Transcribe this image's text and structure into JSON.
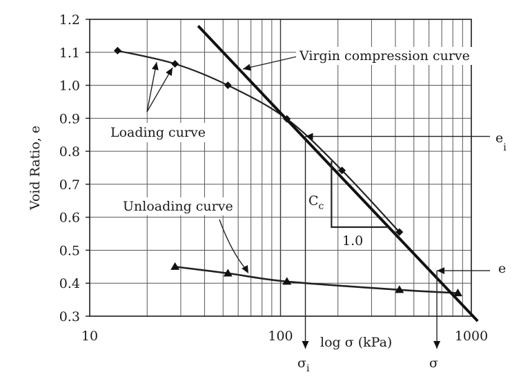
{
  "chart_data": {
    "type": "line",
    "title": "",
    "xlabel": "log σ (kPa)",
    "ylabel": "Void Ratio, e",
    "xscale": "log",
    "xlim": [
      10,
      1000
    ],
    "ylim": [
      0.3,
      1.2
    ],
    "grid": true,
    "x_ticks": [
      {
        "value": 10,
        "label": "10"
      },
      {
        "value": 100,
        "label": "100"
      },
      {
        "value": 1000,
        "label": "1000"
      }
    ],
    "y_ticks": [
      {
        "value": 0.3,
        "label": "0.3"
      },
      {
        "value": 0.4,
        "label": "0.4"
      },
      {
        "value": 0.5,
        "label": "0.5"
      },
      {
        "value": 0.6,
        "label": "0.6"
      },
      {
        "value": 0.7,
        "label": "0.7"
      },
      {
        "value": 0.8,
        "label": "0.8"
      },
      {
        "value": 0.9,
        "label": "0.9"
      },
      {
        "value": 1.0,
        "label": "1.0"
      },
      {
        "value": 1.1,
        "label": "1.1"
      },
      {
        "value": 1.2,
        "label": "1.2"
      }
    ],
    "series": [
      {
        "name": "Loading curve",
        "marker": "diamond",
        "points": [
          {
            "x": 14,
            "y": 1.105
          },
          {
            "x": 28,
            "y": 1.065
          },
          {
            "x": 53,
            "y": 1.0
          },
          {
            "x": 108,
            "y": 0.898
          },
          {
            "x": 210,
            "y": 0.742
          },
          {
            "x": 420,
            "y": 0.555
          }
        ]
      },
      {
        "name": "Unloading curve",
        "marker": "triangle",
        "points": [
          {
            "x": 28,
            "y": 0.45
          },
          {
            "x": 53,
            "y": 0.43
          },
          {
            "x": 108,
            "y": 0.405
          },
          {
            "x": 420,
            "y": 0.38
          },
          {
            "x": 850,
            "y": 0.37
          }
        ]
      },
      {
        "name": "Virgin compression curve",
        "marker": "none",
        "points": [
          {
            "x": 37,
            "y": 1.18
          },
          {
            "x": 1080,
            "y": 0.285
          }
        ]
      }
    ],
    "annotations": {
      "virgin_label": "Virgin compression curve",
      "loading_label": "Loading curve",
      "unloading_label": "Unloading curve",
      "ei_label": "e",
      "ei_sub": "i",
      "e_label": "e",
      "cc_label": "C",
      "cc_sub": "c",
      "slope_run_label": "1.0",
      "sigma_i_label": "σ",
      "sigma_i_sub": "i",
      "sigma_label": "σ"
    },
    "markers": {
      "ei": {
        "x": 135,
        "y": 0.845
      },
      "e": {
        "x": 660,
        "y": 0.438
      },
      "slope_triangle": {
        "x_start": 185,
        "x_end": 370,
        "y_top": 0.77,
        "y_bottom": 0.57
      }
    }
  }
}
